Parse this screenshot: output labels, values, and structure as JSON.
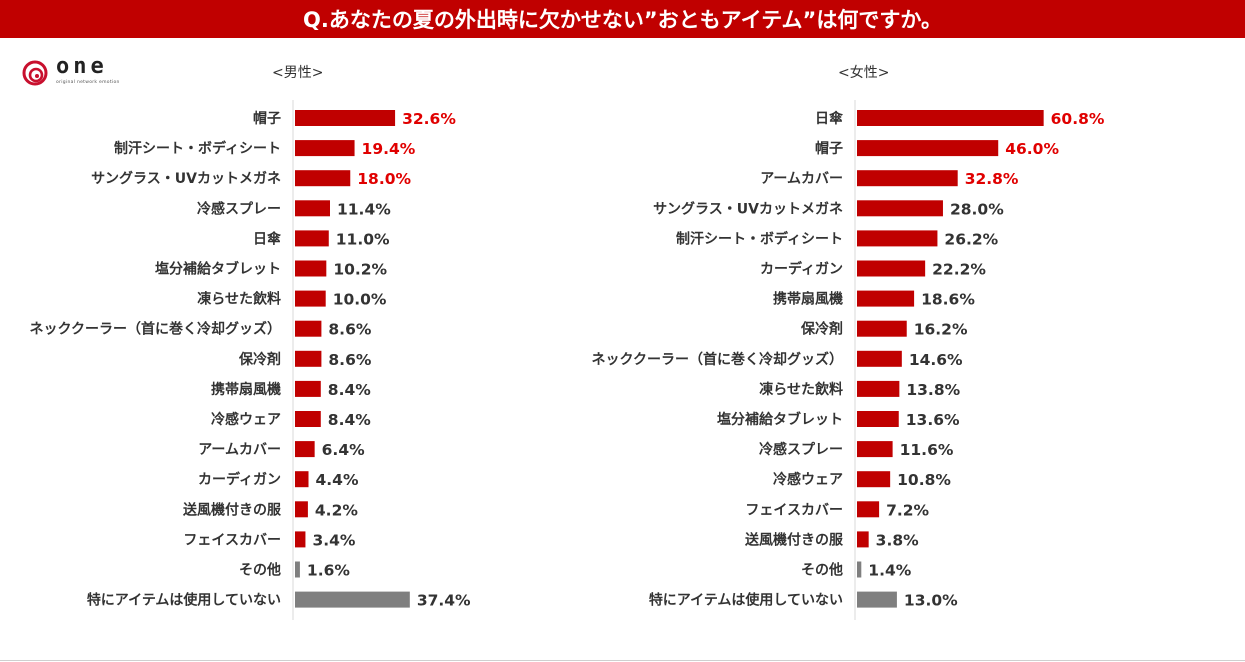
{
  "title": "Q.あなたの夏の外出時に欠かせない”おともアイテム”は何ですか。",
  "logo": {
    "text": "one",
    "subtext": "original network emotion",
    "color": "#c8102e"
  },
  "colors": {
    "title_bg": "#c00000",
    "bar": "#c00000",
    "bar_other": "#7f7f7f",
    "highlight_label": "#e00000",
    "normal_label": "#333333"
  },
  "chart_data": [
    {
      "type": "bar",
      "orientation": "horizontal",
      "title": "<男性>",
      "unit": "%",
      "xlim": [
        0,
        65
      ],
      "categories": [
        "帽子",
        "制汗シート・ボディシート",
        "サングラス・UVカットメガネ",
        "冷感スプレー",
        "日傘",
        "塩分補給タブレット",
        "凍らせた飲料",
        "ネッククーラー（首に巻く冷却グッズ）",
        "保冷剤",
        "携帯扇風機",
        "冷感ウェア",
        "アームカバー",
        "カーディガン",
        "送風機付きの服",
        "フェイスカバー",
        "その他",
        "特にアイテムは使用していない"
      ],
      "values": [
        32.6,
        19.4,
        18.0,
        11.4,
        11.0,
        10.2,
        10.0,
        8.6,
        8.6,
        8.4,
        8.4,
        6.4,
        4.4,
        4.2,
        3.4,
        1.6,
        37.4
      ],
      "value_labels": [
        "32.6%",
        "19.4%",
        "18.0%",
        "11.4%",
        "11.0%",
        "10.2%",
        "10.0%",
        "8.6%",
        "8.6%",
        "8.4%",
        "8.4%",
        "6.4%",
        "4.4%",
        "4.2%",
        "3.4%",
        "1.6%",
        "37.4%"
      ],
      "highlight_top": 3,
      "other_categories": [
        "その他",
        "特にアイテムは使用していない"
      ]
    },
    {
      "type": "bar",
      "orientation": "horizontal",
      "title": "<女性>",
      "unit": "%",
      "xlim": [
        0,
        65
      ],
      "categories": [
        "日傘",
        "帽子",
        "アームカバー",
        "サングラス・UVカットメガネ",
        "制汗シート・ボディシート",
        "カーディガン",
        "携帯扇風機",
        "保冷剤",
        "ネッククーラー（首に巻く冷却グッズ）",
        "凍らせた飲料",
        "塩分補給タブレット",
        "冷感スプレー",
        "冷感ウェア",
        "フェイスカバー",
        "送風機付きの服",
        "その他",
        "特にアイテムは使用していない"
      ],
      "values": [
        60.8,
        46.0,
        32.8,
        28.0,
        26.2,
        22.2,
        18.6,
        16.2,
        14.6,
        13.8,
        13.6,
        11.6,
        10.8,
        7.2,
        3.8,
        1.4,
        13.0
      ],
      "value_labels": [
        "60.8%",
        "46.0%",
        "32.8%",
        "28.0%",
        "26.2%",
        "22.2%",
        "18.6%",
        "16.2%",
        "14.6%",
        "13.8%",
        "13.6%",
        "11.6%",
        "10.8%",
        "7.2%",
        "3.8%",
        "1.4%",
        "13.0%"
      ],
      "highlight_top": 3,
      "other_categories": [
        "その他",
        "特にアイテムは使用していない"
      ]
    }
  ]
}
